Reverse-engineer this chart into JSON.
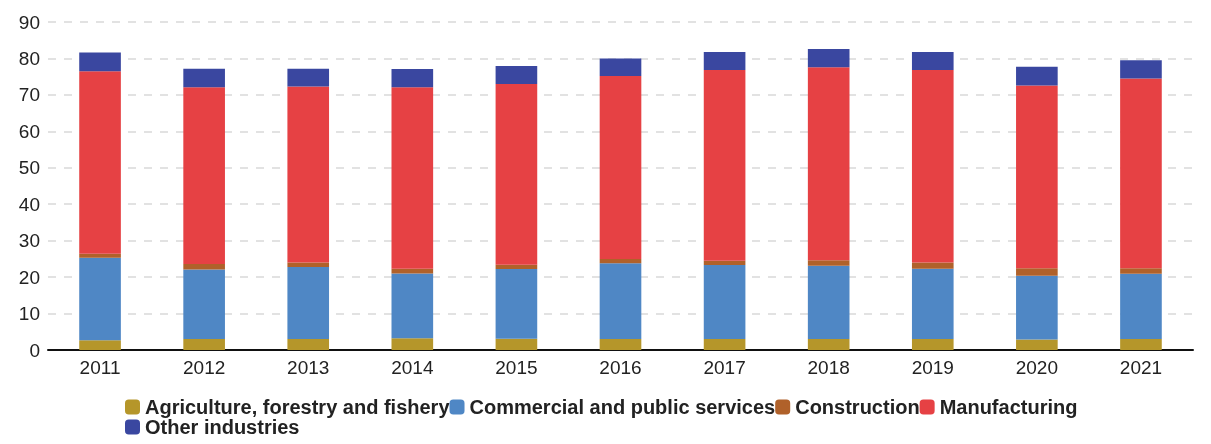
{
  "chart_data": {
    "type": "bar",
    "stacked": true,
    "categories": [
      "2011",
      "2012",
      "2013",
      "2014",
      "2015",
      "2016",
      "2017",
      "2018",
      "2019",
      "2020",
      "2021"
    ],
    "series": [
      {
        "name": "Agriculture, forestry and fishery",
        "color": "#b5962a",
        "values": [
          2.7,
          3.0,
          3.0,
          3.2,
          3.1,
          3.0,
          3.0,
          3.0,
          3.0,
          2.9,
          3.0
        ]
      },
      {
        "name": "Commercial and public services",
        "color": "#4f87c5",
        "values": [
          22.6,
          19.1,
          19.8,
          17.8,
          19.1,
          20.8,
          20.3,
          20.1,
          19.3,
          17.5,
          17.9
        ]
      },
      {
        "name": "Construction",
        "color": "#b0612a",
        "values": [
          1.1,
          1.5,
          1.2,
          1.3,
          1.2,
          1.2,
          1.2,
          1.5,
          1.7,
          2.0,
          1.5
        ]
      },
      {
        "name": "Manufacturing",
        "color": "#e64144",
        "values": [
          50.1,
          48.5,
          48.3,
          49.8,
          49.6,
          50.2,
          52.3,
          53.0,
          52.8,
          50.2,
          52.1
        ]
      },
      {
        "name": "Other industries",
        "color": "#3a47a0",
        "values": [
          5.1,
          5.1,
          4.9,
          5.0,
          4.9,
          4.8,
          5.0,
          5.0,
          5.0,
          5.1,
          5.0
        ]
      }
    ],
    "ylim": [
      0,
      90
    ],
    "yticks": [
      0,
      10,
      20,
      30,
      40,
      50,
      60,
      70,
      80,
      90
    ],
    "grid": "y",
    "legend": "bottom"
  }
}
